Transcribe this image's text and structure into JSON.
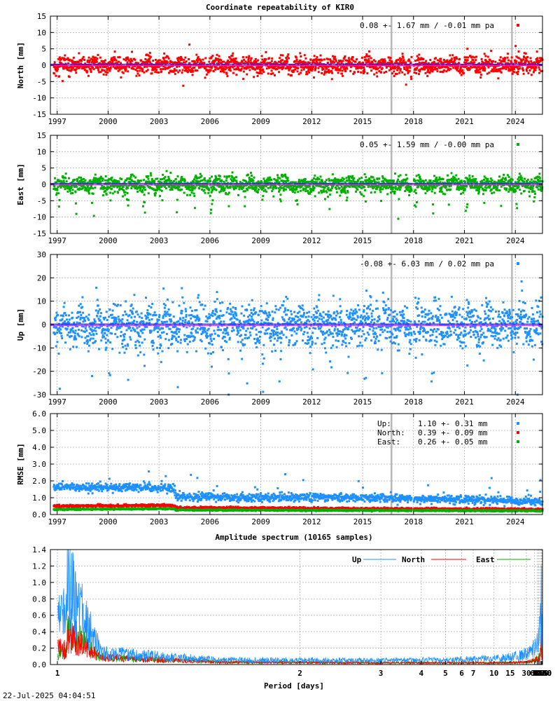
{
  "chart_data": [
    {
      "type": "scatter",
      "title": "Coordinate repeatability of KIR0",
      "ylabel": "North [mm]",
      "ylim": [
        -15,
        15
      ],
      "yticks": [
        -15,
        -10,
        -5,
        0,
        5,
        10,
        15
      ],
      "xlim": [
        1996.6,
        2025.6
      ],
      "xticks": [
        1997,
        2000,
        2003,
        2006,
        2009,
        2012,
        2015,
        2018,
        2021,
        2024
      ],
      "legend": "0.08 +- 1.67 mm / -0.01 mm pa",
      "color": "#ff0000",
      "summary": {
        "mean": 0.08,
        "std": 1.67,
        "trend": -0.01,
        "unit": "mm"
      },
      "events": [
        2016.7,
        2023.8
      ],
      "grid": true
    },
    {
      "type": "scatter",
      "ylabel": "East [mm]",
      "ylim": [
        -15,
        15
      ],
      "yticks": [
        -15,
        -10,
        -5,
        0,
        5,
        10,
        15
      ],
      "xlim": [
        1996.6,
        2025.6
      ],
      "xticks": [
        1997,
        2000,
        2003,
        2006,
        2009,
        2012,
        2015,
        2018,
        2021,
        2024
      ],
      "legend": "0.05 +- 1.59 mm / -0.00 mm pa",
      "color": "#00b000",
      "summary": {
        "mean": 0.05,
        "std": 1.59,
        "trend": -0.0,
        "unit": "mm"
      },
      "events": [
        2016.7,
        2023.8
      ],
      "grid": true
    },
    {
      "type": "scatter",
      "ylabel": "Up [mm]",
      "ylim": [
        -30,
        30
      ],
      "yticks": [
        -30,
        -20,
        -10,
        0,
        10,
        20,
        30
      ],
      "xlim": [
        1996.6,
        2025.6
      ],
      "xticks": [
        1997,
        2000,
        2003,
        2006,
        2009,
        2012,
        2015,
        2018,
        2021,
        2024
      ],
      "legend": "-0.08 +- 6.03 mm /  0.02 mm pa",
      "color": "#1e90ff",
      "summary": {
        "mean": -0.08,
        "std": 6.03,
        "trend": 0.02,
        "unit": "mm"
      },
      "events": [
        2016.7,
        2023.8
      ],
      "grid": true
    },
    {
      "type": "scatter",
      "ylabel": "RMSE [mm]",
      "ylim": [
        0,
        6
      ],
      "yticks": [
        "0.0",
        "1.0",
        "2.0",
        "3.0",
        "4.0",
        "5.0",
        "6.0"
      ],
      "xlim": [
        1996.6,
        2025.6
      ],
      "xticks": [
        1997,
        2000,
        2003,
        2006,
        2009,
        2012,
        2015,
        2018,
        2021,
        2024
      ],
      "events": [
        2016.7,
        2023.8
      ],
      "grid": true,
      "series": [
        {
          "name": "Up:",
          "stats": "1.10 +- 0.31 mm",
          "mean": 1.1,
          "std": 0.31,
          "color": "#1e90ff",
          "levels": [
            [
              1996.6,
              1.65
            ],
            [
              2003.9,
              1.55
            ],
            [
              2004.0,
              1.05
            ],
            [
              2016.0,
              1.0
            ],
            [
              2025.6,
              0.75
            ]
          ]
        },
        {
          "name": "North:",
          "stats": "0.39 +- 0.09 mm",
          "mean": 0.39,
          "std": 0.09,
          "color": "#ff0000",
          "levels": [
            [
              1996.6,
              0.5
            ],
            [
              2003.9,
              0.55
            ],
            [
              2004.0,
              0.4
            ],
            [
              2025.6,
              0.3
            ]
          ]
        },
        {
          "name": "East:",
          "stats": "0.26 +- 0.05 mm",
          "mean": 0.26,
          "std": 0.05,
          "color": "#00b000",
          "levels": [
            [
              1996.6,
              0.3
            ],
            [
              2003.9,
              0.35
            ],
            [
              2004.0,
              0.27
            ],
            [
              2025.6,
              0.22
            ]
          ]
        }
      ]
    },
    {
      "type": "line",
      "title": "Amplitude spectrum (10165 samples)",
      "xlabel": "Period [days]",
      "xscale": "reciprocal",
      "xlim": [
        1,
        8760
      ],
      "xticks": [
        1,
        2,
        3,
        4,
        5,
        6,
        7,
        10,
        15,
        30,
        61,
        91,
        122,
        183,
        365,
        730,
        2190,
        4380,
        8760
      ],
      "ylim": [
        0,
        1.4
      ],
      "yticks": [
        "0.0",
        "0.2",
        "0.4",
        "0.6",
        "0.8",
        "1.0",
        "1.2",
        "1.4"
      ],
      "grid": true,
      "legend_position": "top-right",
      "series": [
        {
          "name": "Up",
          "color": "#1e90ff",
          "x": [
            1.02,
            1.1,
            1.5,
            3,
            10,
            30,
            61,
            91,
            122,
            183,
            300,
            365,
            500,
            730,
            1000,
            2190,
            3000,
            4380,
            8760
          ],
          "y": [
            1.4,
            0.2,
            0.08,
            0.07,
            0.1,
            0.18,
            0.3,
            0.35,
            0.45,
            0.8,
            0.7,
            1.3,
            0.6,
            0.8,
            0.5,
            0.45,
            0.2,
            1.17,
            0.82
          ]
        },
        {
          "name": "North",
          "color": "#ff0000",
          "x": [
            1.02,
            1.1,
            1.5,
            3,
            10,
            30,
            61,
            91,
            122,
            183,
            365,
            500,
            730,
            1000,
            2190,
            4380,
            8760
          ],
          "y": [
            0.55,
            0.12,
            0.04,
            0.03,
            0.03,
            0.04,
            0.08,
            0.1,
            0.12,
            0.15,
            0.45,
            0.15,
            0.1,
            0.25,
            0.2,
            0.28,
            0.28
          ]
        },
        {
          "name": "East",
          "color": "#00b000",
          "x": [
            1.02,
            1.1,
            1.5,
            3,
            10,
            30,
            61,
            91,
            122,
            183,
            365,
            500,
            730,
            1000,
            2190,
            4380,
            8760
          ],
          "y": [
            0.6,
            0.12,
            0.04,
            0.03,
            0.03,
            0.04,
            0.08,
            0.1,
            0.12,
            0.18,
            0.25,
            0.2,
            0.1,
            0.15,
            0.5,
            0.1,
            0.2
          ]
        }
      ]
    }
  ],
  "footer": {
    "timestamp": "22-Jul-2025 04:04:51"
  }
}
